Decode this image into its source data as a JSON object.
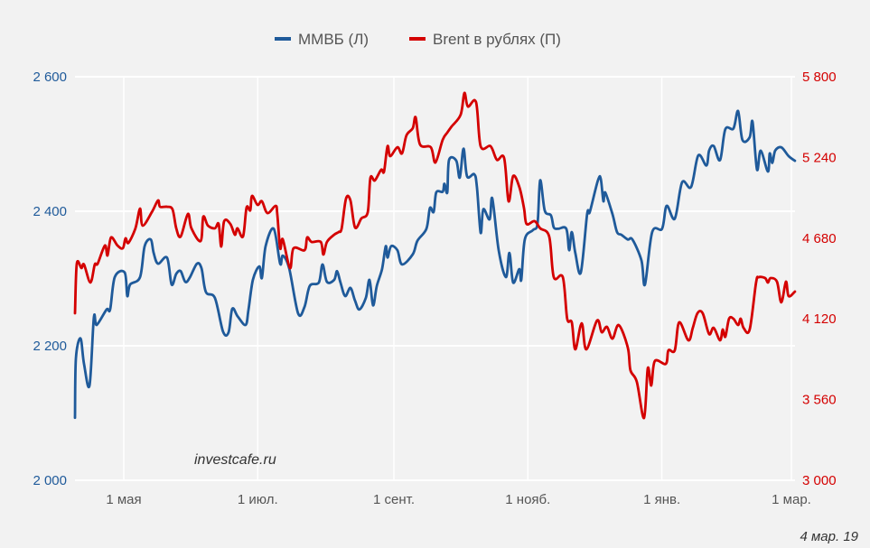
{
  "chart_data": {
    "type": "line",
    "title": "",
    "xlabel": "",
    "x_unit": "days relative to 1 May 2018",
    "x_ticks": [
      {
        "day": 0,
        "label": "1 мая"
      },
      {
        "day": 61,
        "label": "1 июл."
      },
      {
        "day": 123,
        "label": "1 сент."
      },
      {
        "day": 184,
        "label": "1 нояб."
      },
      {
        "day": 245,
        "label": "1 янв."
      },
      {
        "day": 304,
        "label": "1 мар."
      }
    ],
    "xlim": [
      -22.2,
      306
    ],
    "y_left": {
      "ylim": [
        2000,
        2600
      ],
      "ticks": [
        2000,
        2200,
        2400,
        2600
      ],
      "labels": [
        "2 000",
        "2 200",
        "2 400",
        "2 600"
      ],
      "color": "#1f5a9a"
    },
    "y_right": {
      "ylim": [
        3000,
        5800
      ],
      "ticks": [
        3000,
        3560,
        4120,
        4680,
        5240,
        5800
      ],
      "labels": [
        "3 000",
        "3 560",
        "4 120",
        "4 680",
        "5 240",
        "5 800"
      ],
      "color": "#d40000"
    },
    "legend_position": "top-center",
    "grid": true,
    "series": [
      {
        "name": "ММВБ (Л)",
        "axis": "left",
        "color": "#1f5a9a",
        "x": [
          -22.2,
          -21.8,
          -19.7,
          -18.1,
          -15.6,
          -13.6,
          -12.3,
          -7.8,
          -6.2,
          -4.1,
          0.4,
          1.6,
          2.9,
          7.4,
          9.5,
          12.3,
          13.6,
          15.6,
          19.7,
          21.8,
          23.9,
          25.9,
          28.0,
          30.0,
          33.3,
          35.4,
          37.4,
          41.5,
          45.2,
          47.7,
          49.4,
          51.8,
          55.5,
          56.8,
          58.8,
          61.7,
          62.9,
          64.6,
          68.3,
          71.2,
          72.4,
          75.3,
          79.4,
          82.3,
          84.7,
          88.8,
          90.5,
          92.5,
          95.8,
          97.1,
          98.7,
          100.8,
          103.2,
          105.3,
          107.3,
          110.2,
          111.9,
          113.5,
          115.2,
          117.6,
          119.3,
          120.1,
          121.7,
          124.6,
          126.7,
          131.6,
          133.7,
          137.8,
          139.4,
          141.1,
          142.3,
          145.2,
          146.0,
          147.3,
          148.1,
          151.4,
          153.0,
          154.7,
          156.3,
          159.6,
          160.8,
          162.5,
          163.7,
          166.6,
          167.8,
          170.7,
          174.0,
          175.6,
          177.3,
          180.1,
          181.0,
          182.6,
          186.3,
          188.4,
          189.6,
          191.7,
          194.5,
          195.8,
          197.8,
          201.5,
          202.8,
          204.0,
          205.6,
          208.1,
          211.0,
          212.2,
          215.9,
          217.2,
          218.4,
          219.2,
          222.5,
          224.6,
          226.6,
          229.5,
          231.6,
          235.7,
          237.3,
          240.6,
          245.1,
          247.2,
          250.9,
          254.2,
          258.3,
          261.6,
          265.3,
          266.5,
          268.6,
          271.5,
          273.9,
          277.6,
          279.7,
          281.7,
          285.0,
          286.3,
          288.3,
          290.0,
          293.3,
          294.1,
          295.3,
          296.6,
          299.4,
          302.7,
          305.6
        ],
        "values": [
          2093,
          2181,
          2211,
          2173,
          2141,
          2242,
          2231,
          2254,
          2254,
          2302,
          2309,
          2274,
          2291,
          2302,
          2348,
          2358,
          2338,
          2322,
          2331,
          2291,
          2307,
          2311,
          2295,
          2301,
          2322,
          2315,
          2280,
          2271,
          2221,
          2220,
          2255,
          2244,
          2231,
          2254,
          2298,
          2318,
          2301,
          2348,
          2374,
          2322,
          2334,
          2315,
          2248,
          2258,
          2289,
          2294,
          2321,
          2295,
          2298,
          2311,
          2294,
          2274,
          2286,
          2267,
          2254,
          2271,
          2298,
          2260,
          2289,
          2314,
          2348,
          2331,
          2348,
          2342,
          2321,
          2336,
          2356,
          2374,
          2405,
          2399,
          2428,
          2429,
          2441,
          2428,
          2476,
          2475,
          2450,
          2493,
          2452,
          2455,
          2436,
          2368,
          2403,
          2388,
          2419,
          2342,
          2302,
          2338,
          2294,
          2314,
          2298,
          2358,
          2372,
          2382,
          2446,
          2401,
          2394,
          2376,
          2374,
          2374,
          2342,
          2369,
          2338,
          2309,
          2396,
          2399,
          2446,
          2448,
          2415,
          2428,
          2396,
          2369,
          2365,
          2358,
          2358,
          2327,
          2291,
          2369,
          2374,
          2408,
          2389,
          2443,
          2436,
          2483,
          2468,
          2490,
          2497,
          2476,
          2522,
          2523,
          2549,
          2506,
          2510,
          2533,
          2462,
          2490,
          2459,
          2486,
          2472,
          2490,
          2495,
          2482,
          2475
        ]
      },
      {
        "name": "Brent в рублях (П)",
        "axis": "right",
        "color": "#d40000",
        "x": [
          -22.2,
          -21.4,
          -19.3,
          -18.1,
          -15.2,
          -13.2,
          -11.9,
          -8.6,
          -7.4,
          -5.8,
          -2.9,
          -0.4,
          0.8,
          2.1,
          5.3,
          7.4,
          8.6,
          12.8,
          15.6,
          16.5,
          19.7,
          22.2,
          23.9,
          25.9,
          29.2,
          30.8,
          35.0,
          36.2,
          38.3,
          41.5,
          43.2,
          44.4,
          45.7,
          48.5,
          50.6,
          51.8,
          54.3,
          55.9,
          57.6,
          58.4,
          60.9,
          62.9,
          65.4,
          69.1,
          69.9,
          71.2,
          72.4,
          75.7,
          77.3,
          82.3,
          83.5,
          85.5,
          89.7,
          90.9,
          92.5,
          95.8,
          97.9,
          99.2,
          101.2,
          103.2,
          105.3,
          108.2,
          111.1,
          112.3,
          114.3,
          117.2,
          118.5,
          120.1,
          121.3,
          124.6,
          126.7,
          128.7,
          131.6,
          132.9,
          134.9,
          139.8,
          141.9,
          145.2,
          147.3,
          149.3,
          153.4,
          155.1,
          156.7,
          160.4,
          162.5,
          167.0,
          169.9,
          173.2,
          175.2,
          177.3,
          180.1,
          182.2,
          183.4,
          187.1,
          189.6,
          193.7,
          195.8,
          199.9,
          201.9,
          204.0,
          205.6,
          208.5,
          210.6,
          215.5,
          217.6,
          220.0,
          222.5,
          225.4,
          229.5,
          230.7,
          233.6,
          236.9,
          238.6,
          240.2,
          241.8,
          246.8,
          248.0,
          250.9,
          252.9,
          257.1,
          259.1,
          261.2,
          263.6,
          266.5,
          268.6,
          271.5,
          272.7,
          273.9,
          275.6,
          277.6,
          279.7,
          280.9,
          282.2,
          285.0,
          287.9,
          289.1,
          292.0,
          293.3,
          294.5,
          297.4,
          299.4,
          301.5,
          302.7,
          305.6
        ],
        "values": [
          4159,
          4503,
          4472,
          4497,
          4372,
          4497,
          4503,
          4629,
          4560,
          4685,
          4629,
          4610,
          4679,
          4647,
          4748,
          4885,
          4767,
          4861,
          4942,
          4898,
          4898,
          4879,
          4748,
          4691,
          4848,
          4748,
          4660,
          4829,
          4767,
          4748,
          4779,
          4622,
          4798,
          4779,
          4704,
          4748,
          4691,
          4892,
          4873,
          4973,
          4911,
          4936,
          4854,
          4904,
          4848,
          4610,
          4672,
          4472,
          4610,
          4597,
          4685,
          4654,
          4654,
          4566,
          4654,
          4704,
          4723,
          4748,
          4954,
          4942,
          4754,
          4817,
          4861,
          5098,
          5080,
          5155,
          5142,
          5318,
          5249,
          5311,
          5268,
          5393,
          5443,
          5518,
          5330,
          5311,
          5205,
          5362,
          5412,
          5455,
          5537,
          5687,
          5593,
          5624,
          5318,
          5318,
          5224,
          5236,
          4936,
          5111,
          5036,
          4892,
          4779,
          4798,
          4748,
          4691,
          4409,
          4409,
          4121,
          4096,
          3908,
          4090,
          3908,
          4109,
          4027,
          4065,
          3983,
          4077,
          3921,
          3764,
          3683,
          3432,
          3777,
          3658,
          3827,
          3808,
          3902,
          3902,
          4096,
          3971,
          4058,
          4159,
          4159,
          4015,
          4058,
          3971,
          4046,
          3996,
          4121,
          4121,
          4077,
          4121,
          4058,
          4046,
          4372,
          4409,
          4403,
          4372,
          4403,
          4378,
          4234,
          4378,
          4278,
          4309
        ]
      }
    ],
    "annotations": {
      "watermark": "investcafe.ru",
      "date": "4 мар. 19"
    }
  }
}
